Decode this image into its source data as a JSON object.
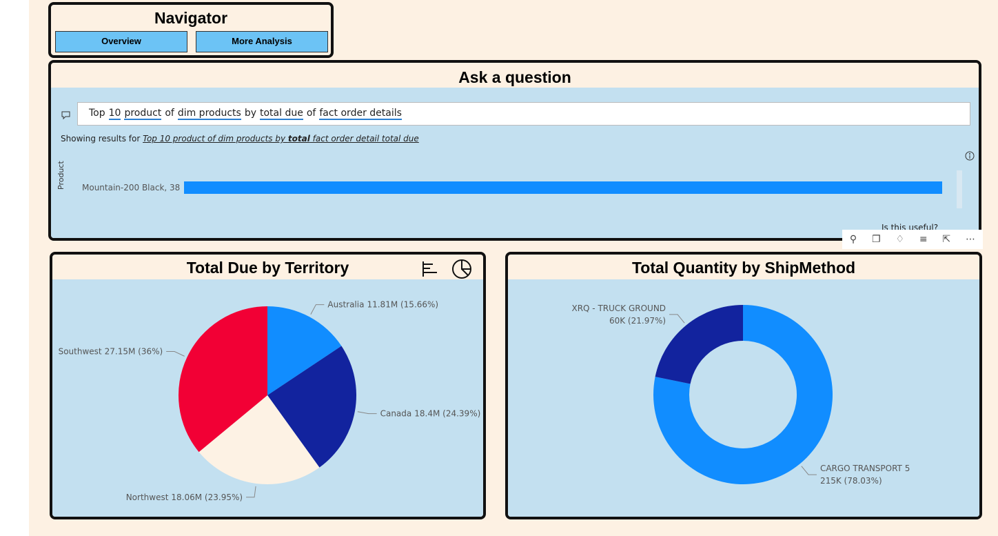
{
  "navigator": {
    "title": "Navigator",
    "buttons": [
      "Overview",
      "More Analysis"
    ]
  },
  "qa": {
    "title": "Ask a question",
    "query_tokens": [
      {
        "text": "Top",
        "underline": false
      },
      {
        "text": "10",
        "underline": true
      },
      {
        "text": "product",
        "underline": true
      },
      {
        "text": "of",
        "underline": false
      },
      {
        "text": "dim products",
        "underline": true
      },
      {
        "text": "by",
        "underline": false
      },
      {
        "text": "total due",
        "underline": true
      },
      {
        "text": "of",
        "underline": false
      },
      {
        "text": "fact order details",
        "underline": true
      }
    ],
    "results_prefix": "Showing results for",
    "results_query": [
      "Top 10 product of dim products by ",
      "total",
      " fact order detail total due"
    ],
    "axis_label": "Product",
    "bar_label": "Mountain-200 Black, 38",
    "feedback": "Is this useful?"
  },
  "chart_data": [
    {
      "type": "pie",
      "title": "Total Due by Territory",
      "categories": [
        "Australia",
        "Canada",
        "Northwest",
        "Southwest"
      ],
      "values": [
        11810000,
        18400000,
        18060000,
        27150000
      ],
      "value_labels": [
        "11.81M (15.66%)",
        "18.4M (24.39%)",
        "18.06M (23.95%)",
        "27.15M (36%)"
      ],
      "colors": [
        "#118dff",
        "#12239e",
        "#fdf2e4",
        "#f20035"
      ]
    },
    {
      "type": "donut",
      "title": "Total Quantity by ShipMethod",
      "categories": [
        "CARGO TRANSPORT 5",
        "XRQ - TRUCK GROUND"
      ],
      "values": [
        215000,
        60000
      ],
      "value_labels": [
        "215K (78.03%)",
        "60K (21.97%)"
      ],
      "colors": [
        "#118dff",
        "#12239e"
      ]
    }
  ]
}
